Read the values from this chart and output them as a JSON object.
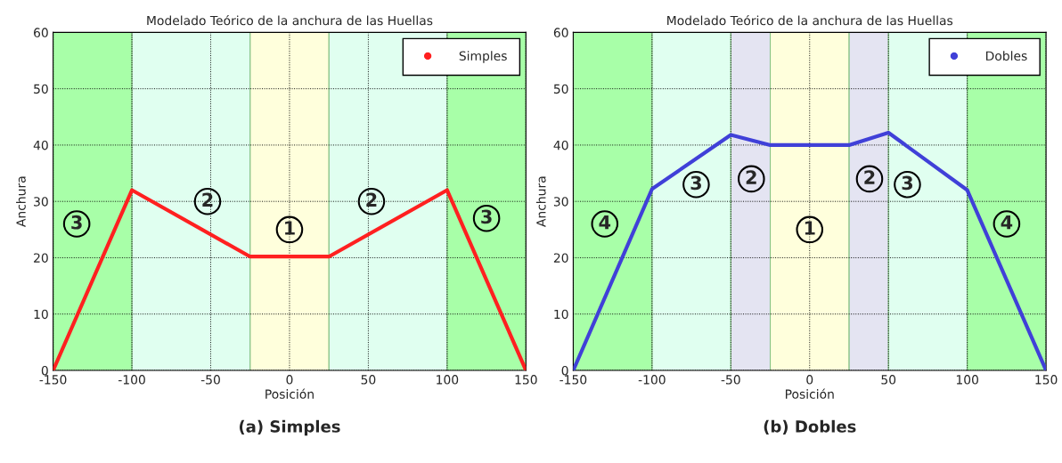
{
  "chart_data": [
    {
      "type": "line",
      "title": "Modelado Teórico de la anchura de las Huellas",
      "xlabel": "Posición",
      "ylabel": "Anchura",
      "x": [
        -150,
        -100,
        -25,
        25,
        100,
        150
      ],
      "series": [
        {
          "name": "Simples",
          "color": "#ff2020",
          "values": [
            0,
            32,
            20.2,
            20.2,
            32,
            0
          ]
        }
      ],
      "xlim": [
        -150,
        150
      ],
      "xticks": [
        -150,
        -100,
        -50,
        0,
        50,
        100,
        150
      ],
      "ylim": [
        0,
        60
      ],
      "yticks": [
        0,
        10,
        20,
        30,
        40,
        50,
        60
      ],
      "grid": true,
      "legend": "top right",
      "line_style": "solid",
      "bands": [
        {
          "axis": "x",
          "from": -150,
          "to": -100,
          "color": "#a8ffa8"
        },
        {
          "axis": "x",
          "from": -100,
          "to": -25,
          "color": "#e0fff0"
        },
        {
          "axis": "x",
          "from": -25,
          "to": 25,
          "color": "#ffffdc"
        },
        {
          "axis": "x",
          "from": 25,
          "to": 100,
          "color": "#e0fff0"
        },
        {
          "axis": "x",
          "from": 100,
          "to": 150,
          "color": "#a8ffa8"
        }
      ],
      "annotations": [
        {
          "text": "3",
          "x": -135,
          "y": 26
        },
        {
          "text": "2",
          "x": -52,
          "y": 30
        },
        {
          "text": "1",
          "x": 0,
          "y": 25
        },
        {
          "text": "2",
          "x": 52,
          "y": 30
        },
        {
          "text": "3",
          "x": 125,
          "y": 27
        },
        "(a) Simples"
      ]
    },
    {
      "type": "line",
      "title": "Modelado Teórico de la anchura de las Huellas",
      "xlabel": "Posición",
      "ylabel": "Anchura",
      "x": [
        -150,
        -100,
        -50,
        -25,
        25,
        50,
        100,
        150
      ],
      "series": [
        {
          "name": "Dobles",
          "color": "#4040d8",
          "values": [
            0,
            32.2,
            41.8,
            40,
            40,
            42.2,
            32,
            0
          ]
        }
      ],
      "xlim": [
        -150,
        150
      ],
      "xticks": [
        -150,
        -100,
        -50,
        0,
        50,
        100,
        150
      ],
      "ylim": [
        0,
        60
      ],
      "yticks": [
        0,
        10,
        20,
        30,
        40,
        50,
        60
      ],
      "grid": true,
      "legend": "top right",
      "line_style": "solid",
      "bands": [
        {
          "axis": "x",
          "from": -150,
          "to": -100,
          "color": "#a8ffa8"
        },
        {
          "axis": "x",
          "from": -100,
          "to": -50,
          "color": "#e0fff0"
        },
        {
          "axis": "x",
          "from": -50,
          "to": -25,
          "color": "#e4e4f2"
        },
        {
          "axis": "x",
          "from": -25,
          "to": 25,
          "color": "#ffffdc"
        },
        {
          "axis": "x",
          "from": 25,
          "to": 50,
          "color": "#e4e4f2"
        },
        {
          "axis": "x",
          "from": 50,
          "to": 100,
          "color": "#e0fff0"
        },
        {
          "axis": "x",
          "from": 100,
          "to": 150,
          "color": "#a8ffa8"
        }
      ],
      "annotations": [
        {
          "text": "4",
          "x": -130,
          "y": 26
        },
        {
          "text": "3",
          "x": -72,
          "y": 33
        },
        {
          "text": "2",
          "x": -37,
          "y": 34
        },
        {
          "text": "1",
          "x": 0,
          "y": 25
        },
        {
          "text": "2",
          "x": 38,
          "y": 34
        },
        {
          "text": "3",
          "x": 62,
          "y": 33
        },
        {
          "text": "4",
          "x": 125,
          "y": 26
        },
        "(b) Dobles"
      ]
    }
  ]
}
